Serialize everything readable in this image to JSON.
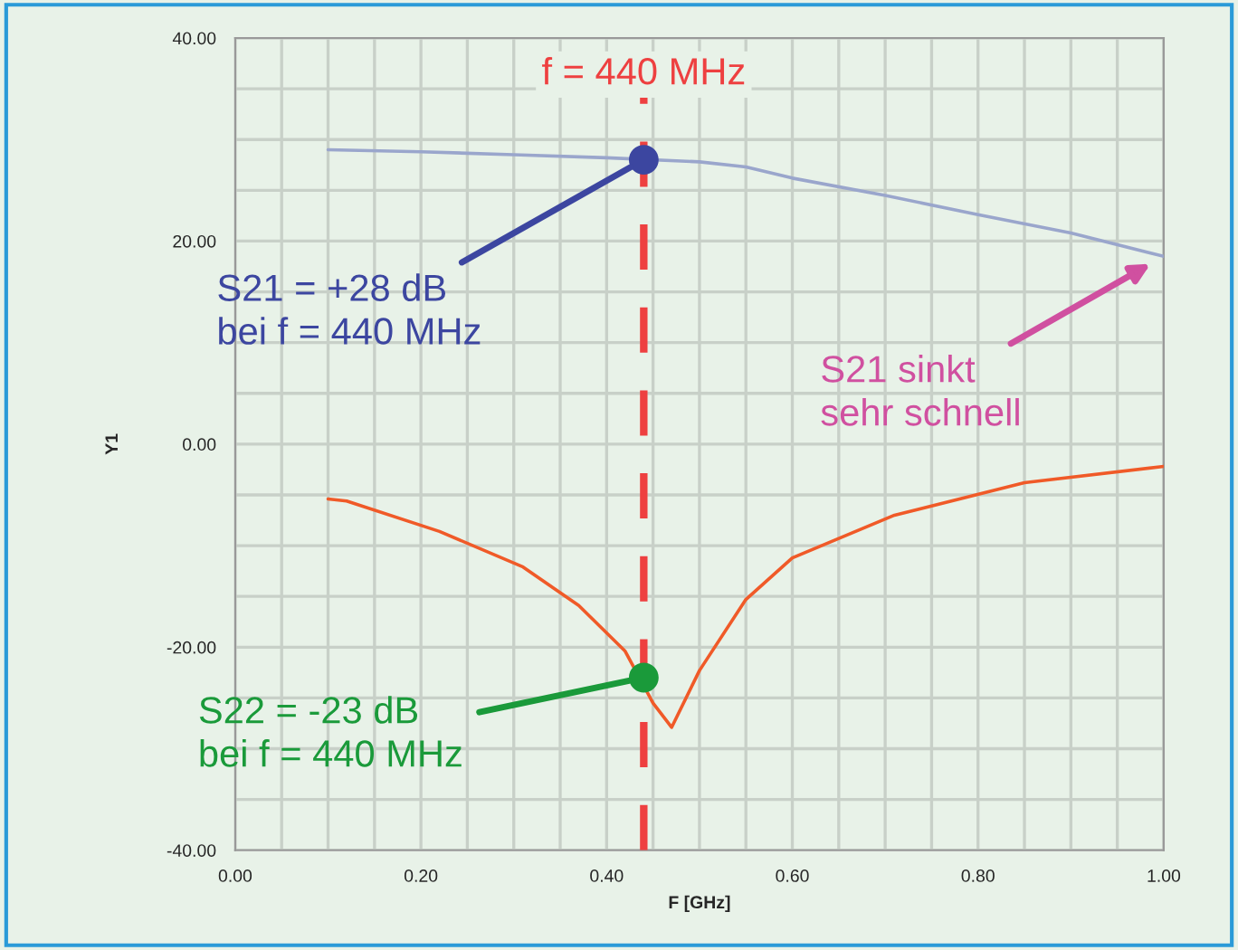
{
  "chart_data": {
    "type": "line",
    "xlabel": "F [GHz]",
    "ylabel": "Y1",
    "xlim": [
      0,
      1.0
    ],
    "ylim": [
      -40,
      40
    ],
    "xticks": [
      {
        "value": 0,
        "label": "0.00"
      },
      {
        "value": 0.05,
        "label": null
      },
      {
        "value": 0.1,
        "label": null
      },
      {
        "value": 0.15,
        "label": null
      },
      {
        "value": 0.2,
        "label": "0.20"
      },
      {
        "value": 0.25,
        "label": null
      },
      {
        "value": 0.3,
        "label": null
      },
      {
        "value": 0.35,
        "label": null
      },
      {
        "value": 0.4,
        "label": "0.40"
      },
      {
        "value": 0.45,
        "label": null
      },
      {
        "value": 0.5,
        "label": null
      },
      {
        "value": 0.55,
        "label": null
      },
      {
        "value": 0.6,
        "label": "0.60"
      },
      {
        "value": 0.65,
        "label": null
      },
      {
        "value": 0.7,
        "label": null
      },
      {
        "value": 0.75,
        "label": null
      },
      {
        "value": 0.8,
        "label": "0.80"
      },
      {
        "value": 0.85,
        "label": null
      },
      {
        "value": 0.9,
        "label": null
      },
      {
        "value": 0.95,
        "label": null
      },
      {
        "value": 1.0,
        "label": "1.00"
      }
    ],
    "yticks": [
      {
        "value": -40,
        "label": "-40.00"
      },
      {
        "value": -35,
        "label": null
      },
      {
        "value": -30,
        "label": null
      },
      {
        "value": -25,
        "label": null
      },
      {
        "value": -20,
        "label": "-20.00"
      },
      {
        "value": -15,
        "label": null
      },
      {
        "value": -10,
        "label": null
      },
      {
        "value": -5,
        "label": null
      },
      {
        "value": 0,
        "label": "0.00"
      },
      {
        "value": 5,
        "label": null
      },
      {
        "value": 10,
        "label": null
      },
      {
        "value": 15,
        "label": null
      },
      {
        "value": 20,
        "label": "20.00"
      },
      {
        "value": 25,
        "label": null
      },
      {
        "value": 30,
        "label": null
      },
      {
        "value": 35,
        "label": null
      },
      {
        "value": 40,
        "label": "40.00"
      }
    ],
    "grid": true,
    "series": [
      {
        "color": "#9aa6cc",
        "x": [
          0.1,
          0.2,
          0.3,
          0.4,
          0.5,
          0.55,
          0.6,
          0.7,
          0.8,
          0.9,
          1.0
        ],
        "values": [
          29,
          28.8,
          28.5,
          28.2,
          27.8,
          27.3,
          26.2,
          24.5,
          22.6,
          20.8,
          18.5
        ]
      },
      {
        "color": "#f05a28",
        "x": [
          0.1,
          0.12,
          0.22,
          0.31,
          0.37,
          0.42,
          0.45,
          0.47,
          0.5,
          0.55,
          0.6,
          0.71,
          0.85,
          1.0
        ],
        "values": [
          -5.4,
          -5.6,
          -8.6,
          -12.1,
          -15.9,
          -20.4,
          -25.5,
          -27.9,
          -22.3,
          -15.3,
          -11.2,
          -7.0,
          -3.8,
          -2.2
        ]
      },
      {
        "type": "scatter",
        "color": "#3c46a0",
        "x": [
          0.44
        ],
        "values": [
          28
        ]
      },
      {
        "type": "scatter",
        "color": "#1a9a3a",
        "x": [
          0.44
        ],
        "values": [
          -23
        ]
      }
    ],
    "ref_lines": [
      {
        "axis": "x",
        "value": 0.44,
        "label": "f = 440 MHz",
        "color": "#ee4040",
        "line_style": "dashed"
      }
    ],
    "annotations": [
      {
        "text": "S21 = +28 dB\nbei f = 440 MHz",
        "x": 0.44,
        "y": 28
      },
      {
        "text": "S22 = -23 dB\nbei f = 440 MHz",
        "x": 0.44,
        "y": -23
      },
      "S21 sinkt\nsehr schnell"
    ]
  }
}
